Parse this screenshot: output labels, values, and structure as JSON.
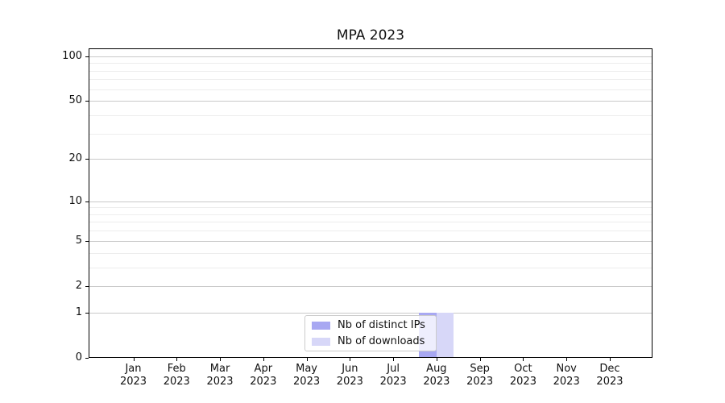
{
  "title": "MPA 2023",
  "colors": {
    "distinct_ips": "#a8a8f2",
    "downloads": "#d7d7f8",
    "grid_major": "#c9c9c9",
    "grid_minor": "#ededed",
    "axis": "#000000"
  },
  "chart_data": {
    "type": "bar",
    "title": "MPA 2023",
    "categories": [
      "Jan",
      "Feb",
      "Mar",
      "Apr",
      "May",
      "Jun",
      "Jul",
      "Aug",
      "Sep",
      "Oct",
      "Nov",
      "Dec"
    ],
    "year_label": "2023",
    "series": [
      {
        "name": "Nb of distinct IPs",
        "color": "#a8a8f2",
        "values": [
          0,
          0,
          0,
          0,
          0,
          0,
          0,
          1,
          0,
          0,
          0,
          0
        ]
      },
      {
        "name": "Nb of downloads",
        "color": "#d7d7f8",
        "values": [
          0,
          0,
          0,
          0,
          0,
          0,
          0,
          1,
          0,
          0,
          0,
          0
        ]
      }
    ],
    "y_axis": {
      "scale": "log1p",
      "major_ticks": [
        0,
        1,
        2,
        5,
        10,
        20,
        50,
        100
      ],
      "minor_ticks": [
        3,
        4,
        6,
        7,
        8,
        9,
        30,
        40,
        60,
        70,
        80,
        90
      ],
      "ylim": [
        0,
        113
      ]
    },
    "xlabel": "",
    "ylabel": "",
    "grid": true,
    "legend_position": "lower center"
  }
}
